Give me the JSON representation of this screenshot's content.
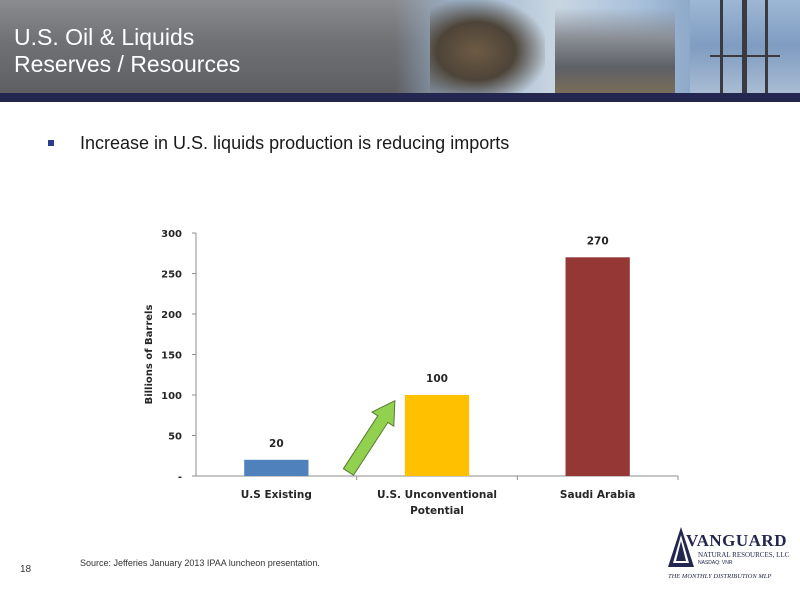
{
  "header": {
    "title_line1": "U.S. Oil & Liquids",
    "title_line2": "Reserves / Resources"
  },
  "bullet": {
    "text": "Increase in U.S. liquids production is reducing imports"
  },
  "chart_data": {
    "type": "bar",
    "categories": [
      "U.S Existing",
      "U.S. Unconventional Potential",
      "Saudi Arabia"
    ],
    "category_lines": [
      [
        "U.S Existing"
      ],
      [
        "U.S. Unconventional",
        "Potential"
      ],
      [
        "Saudi Arabia"
      ]
    ],
    "values": [
      20,
      100,
      270
    ],
    "data_labels": [
      "20",
      "100",
      "270"
    ],
    "colors": [
      "#4f81bd",
      "#ffc000",
      "#953735"
    ],
    "ylabel": "Billions of Barrels",
    "ylim": [
      0,
      300
    ],
    "yticks": [
      0,
      50,
      100,
      150,
      200,
      250,
      300
    ],
    "ytick_labels": [
      "-",
      "50",
      "100",
      "150",
      "200",
      "250",
      "300"
    ],
    "grid": false,
    "annotation": "green arrow pointing from U.S Existing bar toward U.S. Unconventional Potential bar",
    "arrow_color": "#92d050"
  },
  "footer": {
    "page_number": "18",
    "source": "Source:  Jefferies January 2013 IPAA luncheon presentation."
  },
  "logo": {
    "name": "VANGUARD",
    "subtitle": "NATURAL RESOURCES, LLC",
    "nasdaq": "NASDAQ: VNR",
    "tagline": "THE MONTHLY DISTRIBUTION MLP"
  }
}
